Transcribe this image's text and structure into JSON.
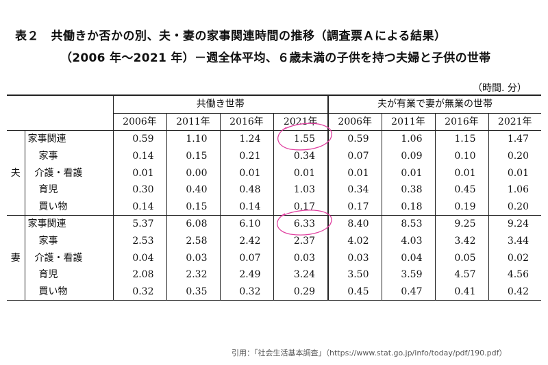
{
  "title_line1": "表２　共働きか否かの別、夫・妻の家事関連時間の推移（調査票Ａによる結果）",
  "title_line2": "（2006 年～2021 年）－週全体平均、６歳未満の子供を持つ夫婦と子供の世帯",
  "unit": "（時間. 分）",
  "group_headers": [
    "共働き世帯",
    "夫が有業で妻が無業の世帯"
  ],
  "years": [
    "2006年",
    "2011年",
    "2016年",
    "2021年"
  ],
  "sections": [
    {
      "label": "夫",
      "rows": [
        {
          "label": "家事関連",
          "values": [
            "0.59",
            "1.10",
            "1.24",
            "1.55",
            "0.59",
            "1.06",
            "1.15",
            "1.47"
          ]
        },
        {
          "label": "家事",
          "values": [
            "0.14",
            "0.15",
            "0.21",
            "0.34",
            "0.07",
            "0.09",
            "0.10",
            "0.20"
          ]
        },
        {
          "label": "介護・看護",
          "values": [
            "0.01",
            "0.00",
            "0.01",
            "0.01",
            "0.01",
            "0.01",
            "0.01",
            "0.01"
          ]
        },
        {
          "label": "育児",
          "values": [
            "0.30",
            "0.40",
            "0.48",
            "1.03",
            "0.34",
            "0.38",
            "0.45",
            "1.06"
          ]
        },
        {
          "label": "買い物",
          "values": [
            "0.14",
            "0.15",
            "0.14",
            "0.17",
            "0.17",
            "0.18",
            "0.19",
            "0.20"
          ]
        }
      ]
    },
    {
      "label": "妻",
      "rows": [
        {
          "label": "家事関連",
          "values": [
            "5.37",
            "6.08",
            "6.10",
            "6.33",
            "8.40",
            "8.53",
            "9.25",
            "9.24"
          ]
        },
        {
          "label": "家事",
          "values": [
            "2.53",
            "2.58",
            "2.42",
            "2.37",
            "4.02",
            "4.03",
            "3.42",
            "3.44"
          ]
        },
        {
          "label": "介護・看護",
          "values": [
            "0.04",
            "0.03",
            "0.07",
            "0.03",
            "0.03",
            "0.04",
            "0.05",
            "0.02"
          ]
        },
        {
          "label": "育児",
          "values": [
            "2.08",
            "2.32",
            "2.49",
            "3.24",
            "3.50",
            "3.59",
            "4.57",
            "4.56"
          ]
        },
        {
          "label": "買い物",
          "values": [
            "0.32",
            "0.35",
            "0.32",
            "0.29",
            "0.45",
            "0.47",
            "0.41",
            "0.42"
          ]
        }
      ]
    }
  ],
  "annotation_color": "#e040a0",
  "source": "引用：「社会生活基本調査」（https://www.stat.go.jp/info/today/pdf/190.pdf）"
}
